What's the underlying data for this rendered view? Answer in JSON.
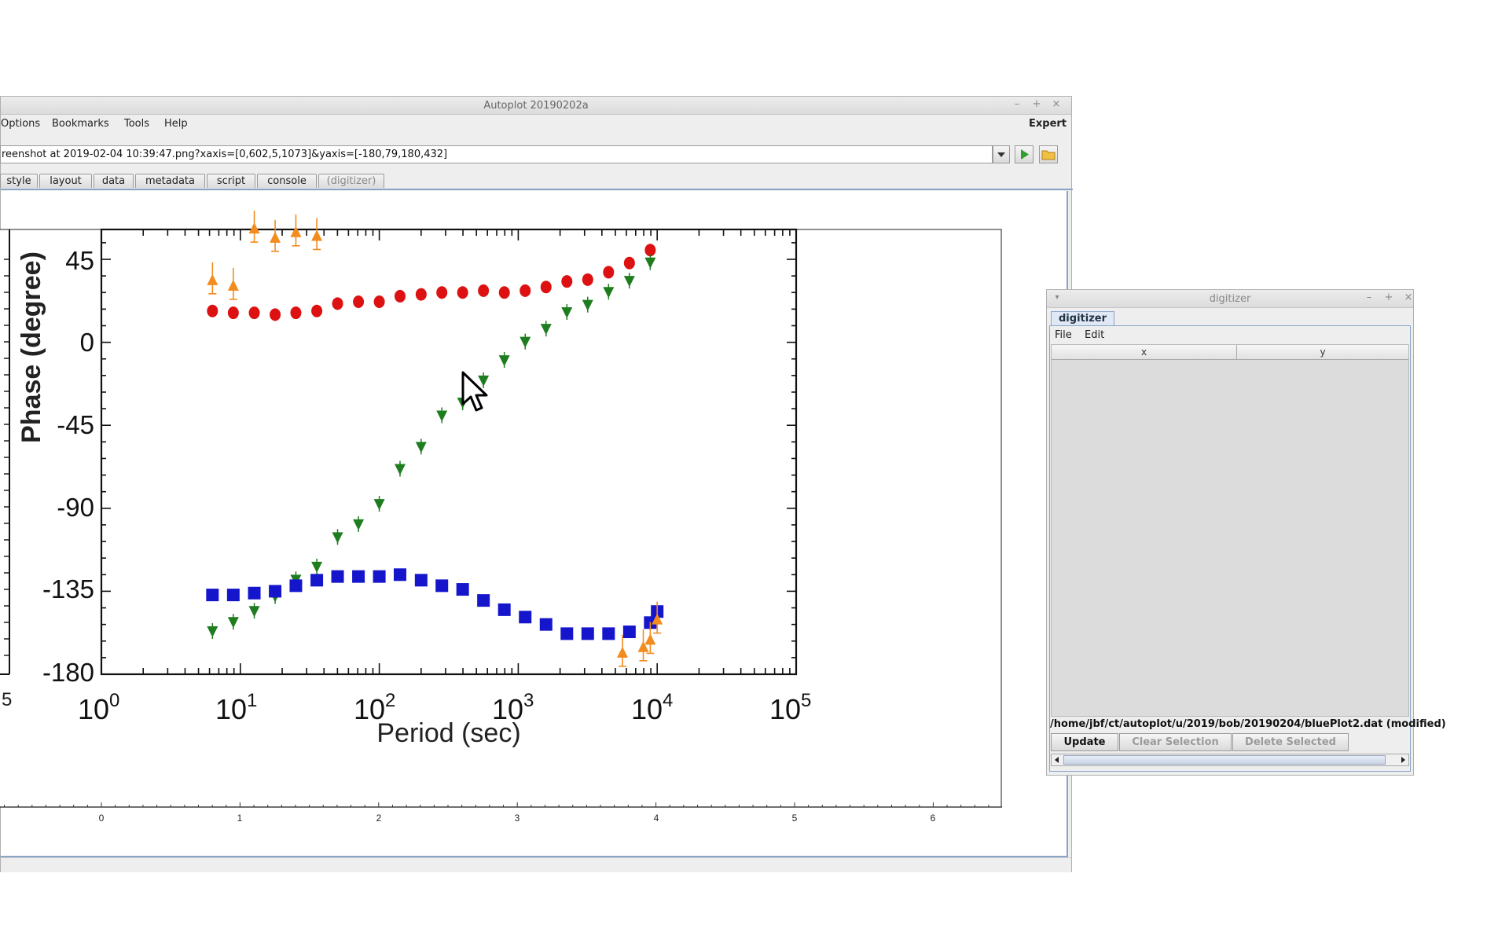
{
  "main_window": {
    "title": "Autoplot 20190202a",
    "controls": {
      "minimize": "–",
      "maximize": "+",
      "close": "×"
    },
    "menu": [
      "Options",
      "Bookmarks",
      "Tools",
      "Help"
    ],
    "expert_label": "Expert",
    "uri_value": "reenshot at 2019-02-04 10:39:47.png?xaxis=[0,602,5,1073]&yaxis=[-180,79,180,432]",
    "tabs": [
      "style",
      "layout",
      "data",
      "metadata",
      "script",
      "console",
      "(digitizer)"
    ],
    "bottom_axis_ticks": [
      "0",
      "1",
      "2",
      "3",
      "4",
      "5",
      "6"
    ]
  },
  "plot_image": {
    "ylabel": "Phase (degree)",
    "xlabel": "Period (sec)",
    "y_ticks": [
      "45",
      "0",
      "-45",
      "-90",
      "-135",
      "-180"
    ],
    "x_ticks": [
      {
        "base": "10",
        "exp": "0"
      },
      {
        "base": "10",
        "exp": "1"
      },
      {
        "base": "10",
        "exp": "2"
      },
      {
        "base": "10",
        "exp": "3"
      },
      {
        "base": "10",
        "exp": "4"
      },
      {
        "base": "10",
        "exp": "5"
      }
    ],
    "left_partial_tick": "5"
  },
  "chart_data": {
    "type": "scatter",
    "xlabel": "Period (sec)",
    "ylabel": "Phase (degree)",
    "x_scale": "log",
    "xlim": [
      1,
      100000
    ],
    "ylim": [
      -180,
      60
    ],
    "colors": {
      "red": "#dd1111",
      "green": "#1e7d1e",
      "blue": "#1515cc",
      "orange": "#f28c1e"
    },
    "series": [
      {
        "color": "red",
        "marker": "circle",
        "x": [
          6.3,
          8.9,
          12.6,
          17.8,
          25.1,
          35.5,
          50.1,
          70.8,
          100,
          141,
          200,
          282,
          398,
          562,
          794,
          1122,
          1585,
          2239,
          3162,
          4467,
          6310,
          8913
        ],
        "y": [
          17,
          16,
          16,
          15,
          16,
          17,
          21,
          22,
          22,
          25,
          26,
          27,
          27,
          28,
          27,
          28,
          30,
          33,
          34,
          38,
          43,
          50
        ]
      },
      {
        "color": "green",
        "marker": "triangle-down",
        "x": [
          6.3,
          8.9,
          12.6,
          17.8,
          25.1,
          35.5,
          50.1,
          70.8,
          100,
          141,
          200,
          282,
          398,
          562,
          794,
          1122,
          1585,
          2239,
          3162,
          4467,
          6310,
          8913
        ],
        "y": [
          -157,
          -152,
          -146,
          -138,
          -129,
          -122,
          -106,
          -99,
          -88,
          -69,
          -57,
          -40,
          -33,
          -21,
          -10,
          0,
          7,
          16,
          20,
          27,
          33,
          43
        ]
      },
      {
        "color": "blue",
        "marker": "square",
        "x": [
          6.3,
          8.9,
          12.6,
          17.8,
          25.1,
          35.5,
          50.1,
          70.8,
          100,
          141,
          200,
          282,
          398,
          562,
          794,
          1122,
          1585,
          2239,
          3162,
          4467,
          6310,
          8913,
          10000
        ],
        "y": [
          -137,
          -137,
          -136,
          -135,
          -132,
          -129,
          -127,
          -127,
          -127,
          -126,
          -129,
          -132,
          -134,
          -140,
          -145,
          -149,
          -153,
          -158,
          -158,
          -158,
          -157,
          -152,
          -146
        ]
      },
      {
        "color": "orange",
        "marker": "triangle-up",
        "x": [
          6.3,
          8.9,
          12.6,
          17.8,
          25.1,
          35.5,
          5623,
          7943,
          8913,
          10000
        ],
        "y": [
          34,
          31,
          62,
          57,
          60,
          58,
          -168,
          -165,
          -161,
          -150
        ]
      }
    ]
  },
  "digitizer": {
    "title": "digitizer",
    "controls": {
      "minimize": "–",
      "maximize": "+",
      "close": "×"
    },
    "tab": "digitizer",
    "menu": [
      "File",
      "Edit"
    ],
    "columns": [
      "x",
      "y"
    ],
    "file_path": "/home/jbf/ct/autoplot/u/2019/bob/20190204/bluePlot2.dat (modified)",
    "buttons": {
      "update": "Update",
      "clear": "Clear Selection",
      "delete": "Delete Selected"
    }
  }
}
